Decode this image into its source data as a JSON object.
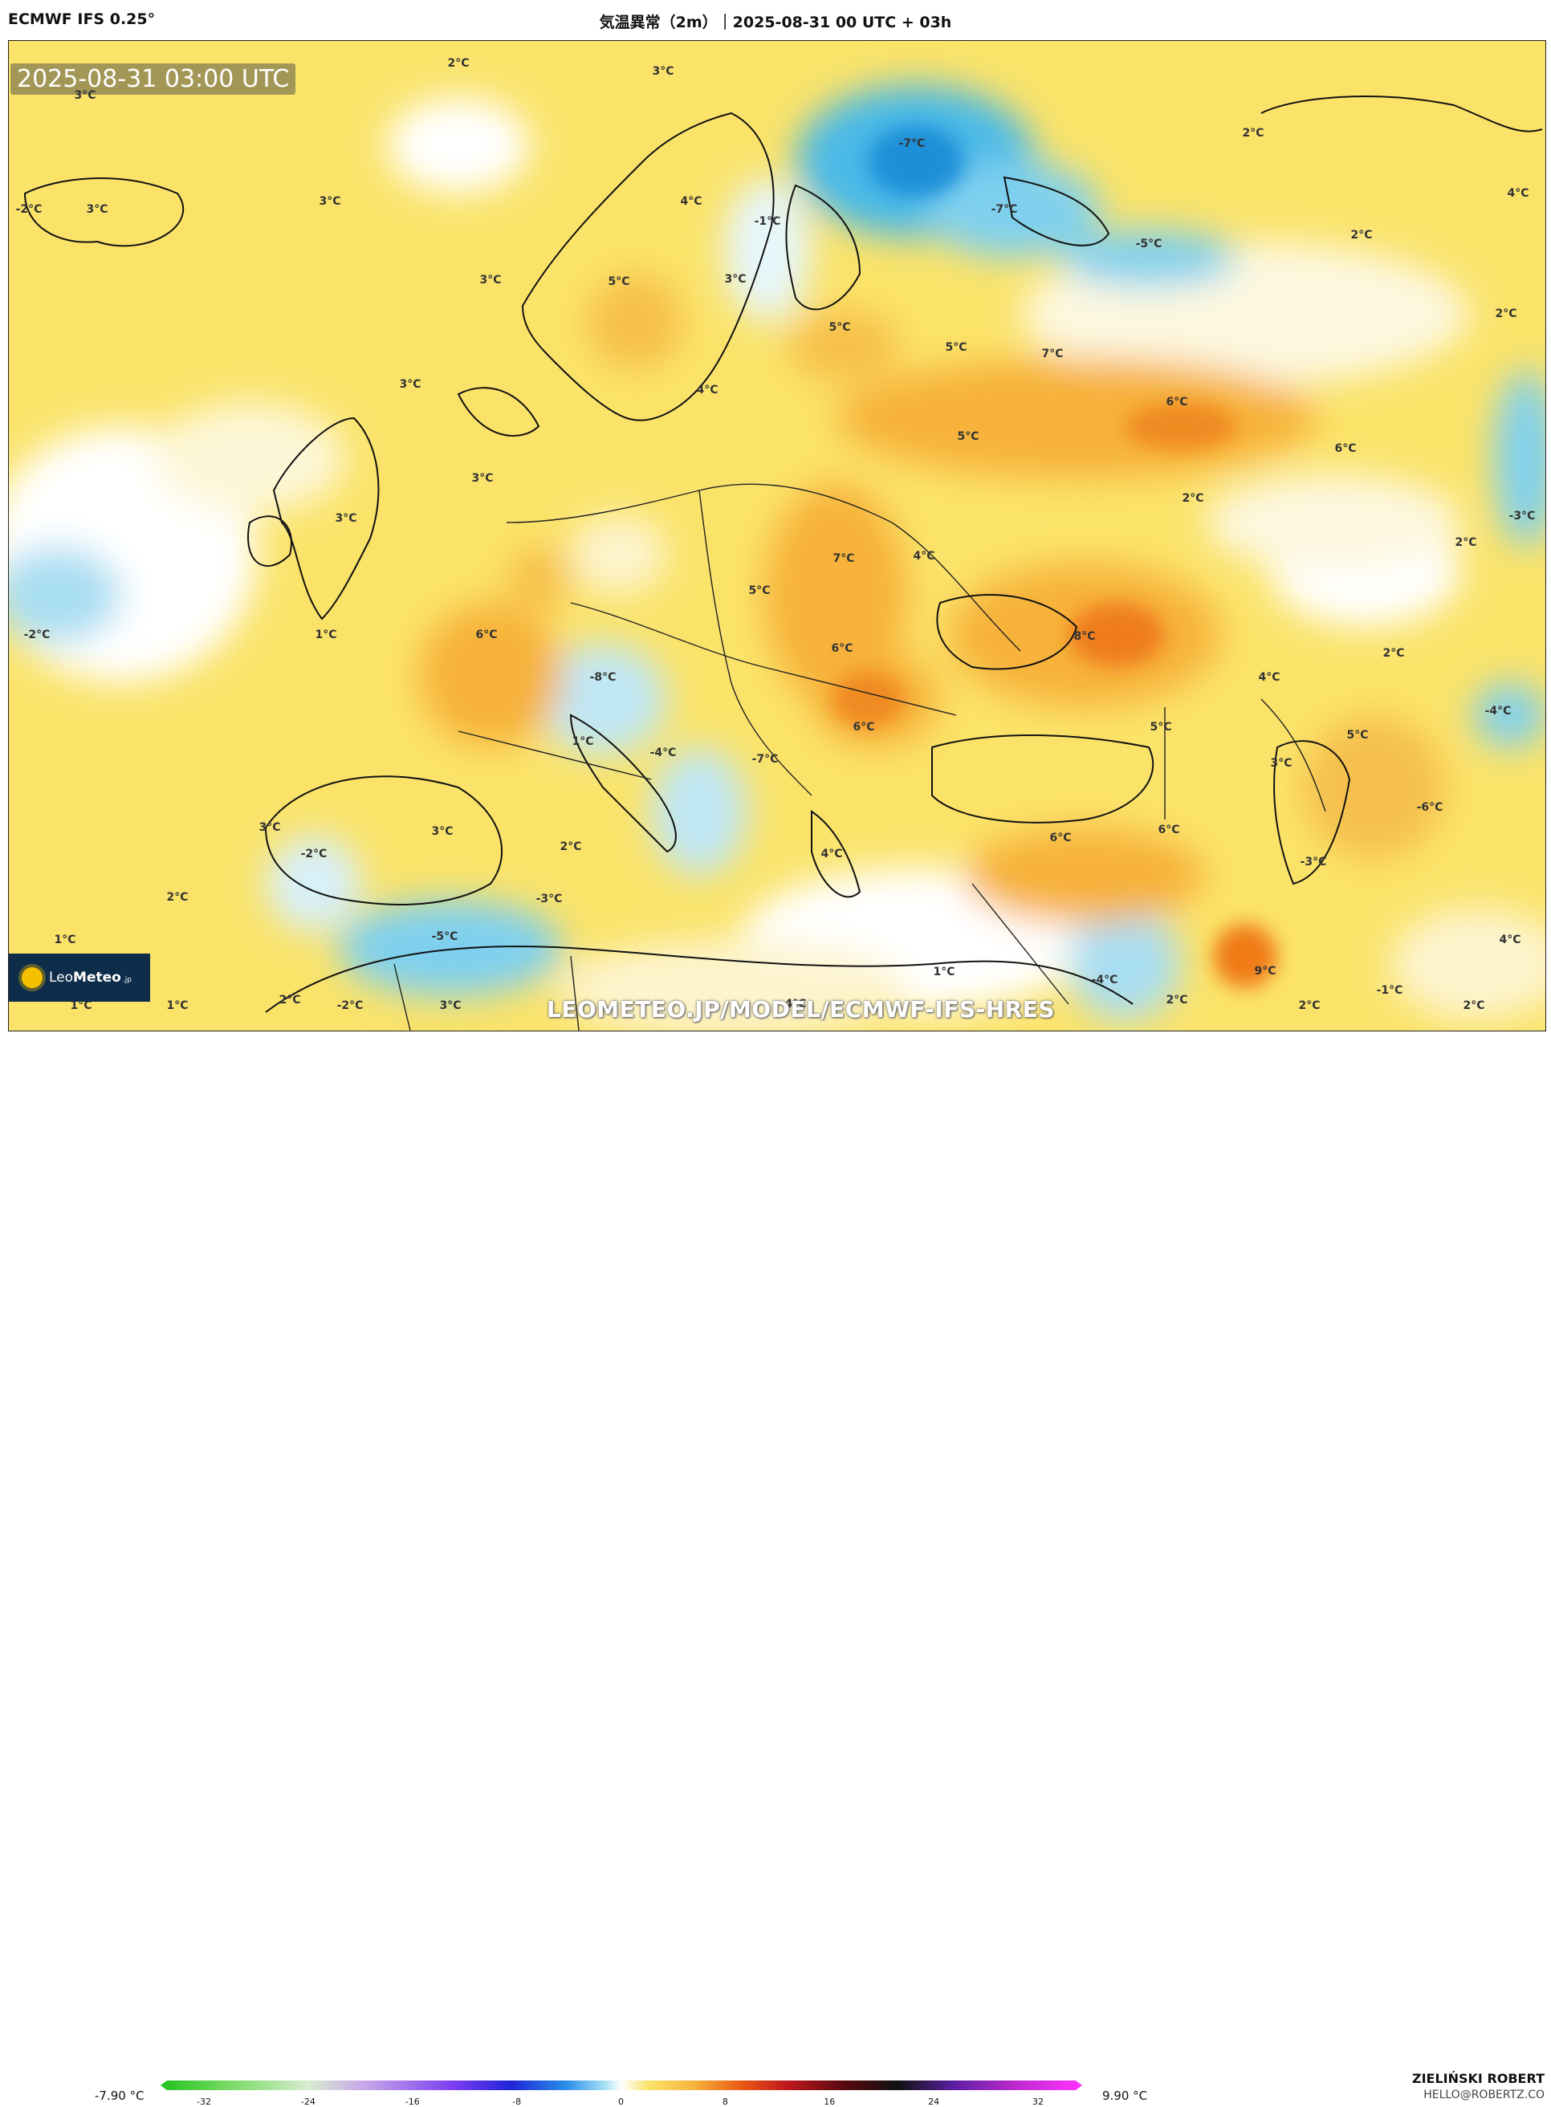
{
  "header": {
    "model": "ECMWF IFS 0.25°",
    "title": "気温異常（2m）｜2025-08-31 00 UTC + 03h"
  },
  "map": {
    "timestamp": "2025-08-31 03:00 UTC",
    "watermark": "LEOMETEO.JP/MODEL/ECMWF-IFS-HRES",
    "labels": [
      "2°C",
      "3°C",
      "3°C",
      "-2°C",
      "3°C",
      "3°C",
      "3°C",
      "3°C",
      "4°C",
      "5°C",
      "-1°C",
      "-7°C",
      "-7°C",
      "-5°C",
      "2°C",
      "4°C",
      "2°C",
      "2°C",
      "3°C",
      "3°C",
      "3°C",
      "2°C",
      "5°C",
      "5°C",
      "4°C",
      "7°C",
      "6°C",
      "5°C",
      "6°C",
      "-3°C",
      "2°C",
      "-2°C",
      "1°C",
      "6°C",
      "5°C",
      "7°C",
      "4°C",
      "8°C",
      "2°C",
      "4°C",
      "-4°C",
      "-8°C",
      "6°C",
      "5°C",
      "6°C",
      "5°C",
      "1°C",
      "-4°C",
      "-7°C",
      "3°C",
      "3°C",
      "3°C",
      "2°C",
      "4°C",
      "6°C",
      "6°C",
      "-6°C",
      "-3°C",
      "-2°C",
      "2°C",
      "1°C",
      "-3°C",
      "-5°C",
      "1°C",
      "-4°C",
      "9°C",
      "4°C",
      "1°C",
      "1°C",
      "2°C",
      "-2°C",
      "3°C",
      "4°C",
      "2°C",
      "2°C",
      "-1°C",
      "2°C"
    ]
  },
  "logo": {
    "name_light": "Leo",
    "name_bold": "Meteo",
    "suffix": ".jp"
  },
  "legend": {
    "min": "-7.90 °C",
    "max": "9.90 °C",
    "ticks": [
      "-32",
      "-24",
      "-16",
      "-8",
      "0",
      "8",
      "16",
      "24",
      "32"
    ]
  },
  "credit": {
    "author": "ZIELIŃSKI ROBERT",
    "email": "HELLO@ROBERTZ.CO"
  }
}
